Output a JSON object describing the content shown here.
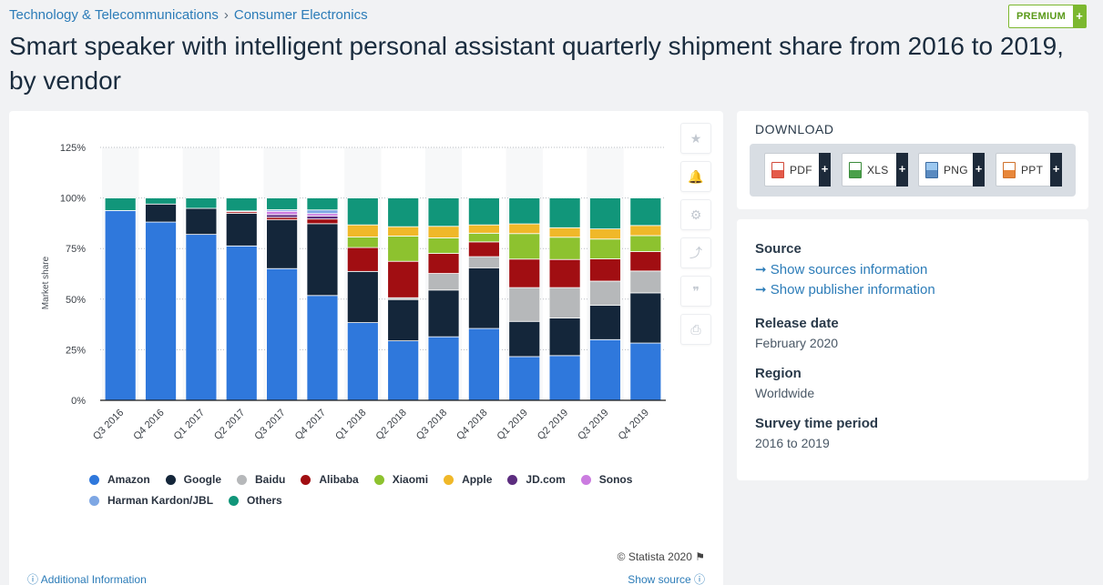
{
  "breadcrumb": {
    "category": "Technology & Telecommunications",
    "separator": "›",
    "subcategory": "Consumer Electronics"
  },
  "premium": {
    "label": "PREMIUM",
    "plus": "+"
  },
  "page_title": "Smart speaker with intelligent personal assistant quarterly shipment share from 2016 to 2019, by vendor",
  "tools": {
    "star": "★",
    "bell": "🔔",
    "gear": "⚙",
    "share": "⤴",
    "quote": "❞",
    "print": "⎙"
  },
  "colors": {
    "Amazon": "#2f78dc",
    "Google": "#14263a",
    "Baidu": "#b6b8ba",
    "Alibaba": "#a10e12",
    "Xiaomi": "#8dc22f",
    "Apple": "#f0b829",
    "JD.com": "#5c2d7f",
    "Sonos": "#cb7ce0",
    "Harman Kardon/JBL": "#7ea7e4",
    "Others": "#11967a"
  },
  "chart_data": {
    "type": "bar",
    "stacked": true,
    "title": "Smart speaker with intelligent personal assistant quarterly shipment share from 2016 to 2019, by vendor",
    "xlabel": "",
    "ylabel": "Market share",
    "ylim": [
      0,
      125
    ],
    "yticks": [
      0,
      25,
      50,
      75,
      100,
      125
    ],
    "ytick_labels": [
      "0%",
      "25%",
      "50%",
      "75%",
      "100%",
      "125%"
    ],
    "grid": true,
    "categories": [
      "Q3 2016",
      "Q4 2016",
      "Q1 2017",
      "Q2 2017",
      "Q3 2017",
      "Q4 2017",
      "Q1 2018",
      "Q2 2018",
      "Q3 2018",
      "Q4 2018",
      "Q1 2019",
      "Q2 2019",
      "Q3 2019",
      "Q4 2019"
    ],
    "series": [
      {
        "name": "Amazon",
        "values": [
          93.8,
          88.1,
          82.0,
          76.3,
          65.1,
          51.8,
          38.4,
          29.4,
          31.4,
          35.5,
          21.6,
          22.1,
          30.0,
          28.3
        ]
      },
      {
        "name": "Google",
        "values": [
          0,
          8.9,
          12.9,
          16.1,
          24.1,
          35.5,
          25.3,
          20.4,
          23.1,
          30.0,
          17.4,
          18.6,
          17.0,
          24.8
        ]
      },
      {
        "name": "Baidu",
        "values": [
          0,
          0,
          0,
          0,
          0,
          0,
          0,
          0.9,
          8.2,
          5.5,
          16.7,
          15.0,
          11.9,
          10.8
        ]
      },
      {
        "name": "Alibaba",
        "values": [
          0,
          0,
          0,
          0.8,
          1.2,
          2.3,
          11.8,
          18.0,
          9.9,
          7.3,
          14.1,
          13.9,
          11.0,
          9.6
        ]
      },
      {
        "name": "Xiaomi",
        "values": [
          0,
          0,
          0,
          0,
          0,
          0,
          5.2,
          12.5,
          7.7,
          4.3,
          12.6,
          11.0,
          9.8,
          7.9
        ]
      },
      {
        "name": "Apple",
        "values": [
          0,
          0,
          0,
          0,
          0,
          0,
          6.0,
          4.6,
          5.7,
          4.1,
          4.8,
          4.7,
          5.0,
          5.0
        ]
      },
      {
        "name": "JD.com",
        "values": [
          0,
          0,
          0,
          0.4,
          1.4,
          1.5,
          0,
          0,
          0,
          0,
          0,
          0,
          0,
          0
        ]
      },
      {
        "name": "Sonos",
        "values": [
          0,
          0,
          0,
          0,
          1.6,
          1.2,
          0,
          0,
          0,
          0,
          0,
          0,
          0,
          0
        ]
      },
      {
        "name": "Harman Kardon/JBL",
        "values": [
          0,
          0,
          0,
          0,
          0.8,
          1.8,
          0,
          0,
          0,
          0,
          0,
          0,
          0,
          0
        ]
      },
      {
        "name": "Others",
        "values": [
          6.2,
          3.0,
          5.1,
          6.4,
          5.8,
          5.9,
          13.3,
          14.2,
          14.0,
          13.3,
          12.8,
          14.7,
          15.3,
          13.6
        ]
      }
    ],
    "legend": [
      "Amazon",
      "Google",
      "Baidu",
      "Alibaba",
      "Xiaomi",
      "Apple",
      "JD.com",
      "Sonos",
      "Harman Kardon/JBL",
      "Others"
    ],
    "legend_position": "bottom"
  },
  "chart_footer": {
    "copyright": "© Statista 2020",
    "flag": "⚑",
    "additional_info": "Additional Information",
    "show_source": "Show source",
    "info_icon": "ⓘ"
  },
  "download": {
    "heading": "DOWNLOAD",
    "plus": "+",
    "buttons": [
      "PDF",
      "XLS",
      "PNG",
      "PPT"
    ]
  },
  "source_panel": {
    "source_heading": "Source",
    "link_arrow": "➞",
    "sources_link": "Show sources information",
    "publisher_link": "Show publisher information",
    "release_heading": "Release date",
    "release_value": "February 2020",
    "region_heading": "Region",
    "region_value": "Worldwide",
    "survey_heading": "Survey time period",
    "survey_value": "2016 to 2019"
  }
}
